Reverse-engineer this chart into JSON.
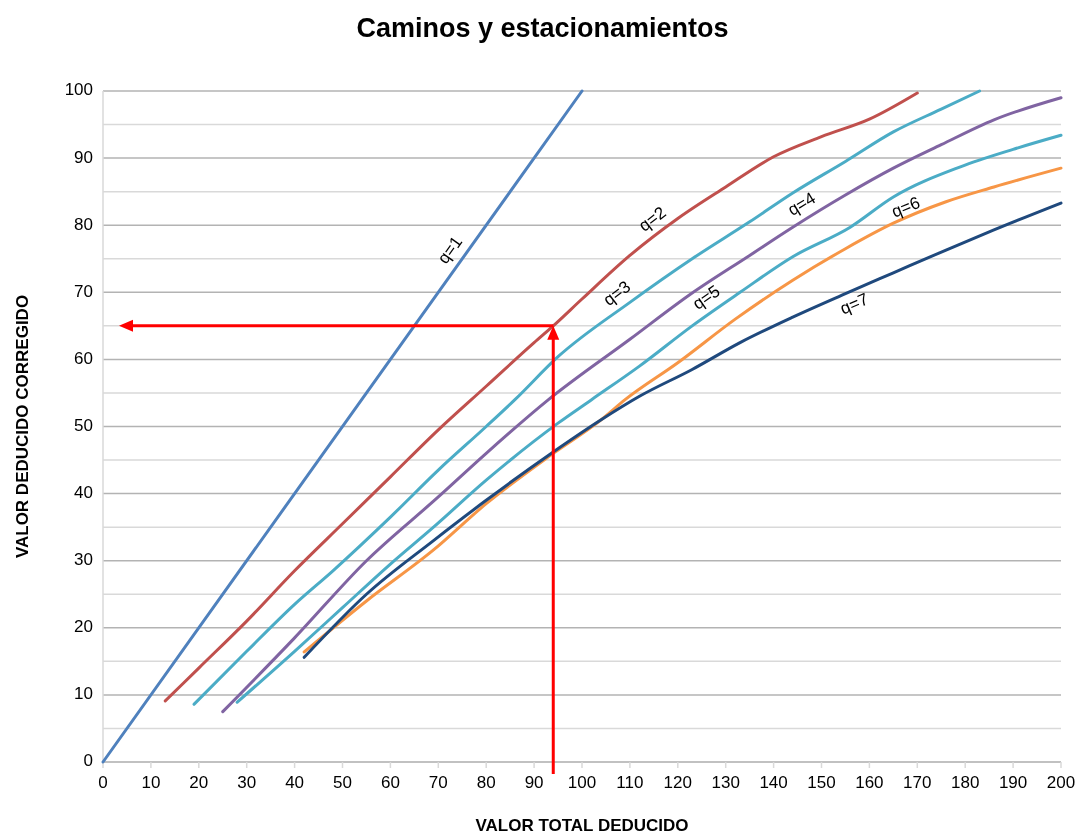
{
  "chart_data": {
    "type": "line",
    "title": "Caminos y estacionamientos",
    "xlabel": "VALOR TOTAL DEDUCIDO",
    "ylabel": "VALOR DEDUCIDO CORREGIDO",
    "xlim": [
      0,
      200
    ],
    "xticks": [
      0,
      10,
      20,
      30,
      40,
      50,
      60,
      70,
      80,
      90,
      100,
      110,
      120,
      130,
      140,
      150,
      160,
      170,
      180,
      190,
      200
    ],
    "ylim": [
      0,
      100
    ],
    "yticks": [
      0,
      {
        "value": 5,
        "label": null
      },
      10,
      {
        "value": 15,
        "label": null
      },
      20,
      {
        "value": 25,
        "label": null
      },
      30,
      {
        "value": 35,
        "label": null
      },
      40,
      {
        "value": 45,
        "label": null
      },
      50,
      {
        "value": 55,
        "label": null
      },
      60,
      {
        "value": 65,
        "label": null
      },
      70,
      {
        "value": 75,
        "label": null
      },
      80,
      {
        "value": 85,
        "label": null
      },
      90,
      {
        "value": 95,
        "label": null
      },
      100
    ],
    "grid": "y",
    "marker": "none",
    "line_style": "solid",
    "series": [
      {
        "name": "q=1",
        "color": "#4f81bd",
        "x": [
          0,
          100
        ],
        "values": [
          0,
          100
        ]
      },
      {
        "name": "q=2",
        "color": "#c0504d",
        "x": [
          13,
          20,
          30,
          40,
          50,
          60,
          70,
          80,
          90,
          94,
          100,
          110,
          120,
          130,
          140,
          150,
          160,
          170
        ],
        "values": [
          9.1,
          14,
          21,
          28.5,
          35.5,
          42.5,
          49.5,
          56,
          62.5,
          65,
          69,
          75.5,
          81,
          85.7,
          90.2,
          93.2,
          95.8,
          99.7
        ]
      },
      {
        "name": "q=3",
        "color": "#4bacc6",
        "x": [
          19,
          30,
          40,
          48,
          60,
          70,
          80,
          86,
          95,
          110,
          123,
          135,
          144,
          155,
          165,
          175,
          183
        ],
        "values": [
          8.6,
          16.5,
          23.5,
          28.5,
          36.5,
          43.5,
          50,
          54,
          60.4,
          68.5,
          75,
          80.5,
          84.8,
          89.5,
          93.9,
          97.3,
          100
        ]
      },
      {
        "name": "q=4",
        "color": "#8064a2",
        "x": [
          25,
          40,
          55,
          70,
          80,
          93,
          110,
          123,
          135,
          144,
          155,
          165,
          175,
          186,
          200
        ],
        "values": [
          7.5,
          18.5,
          30,
          39.5,
          46,
          54,
          63,
          69.9,
          75.5,
          79.7,
          84.5,
          88.5,
          92,
          95.7,
          99
        ]
      },
      {
        "name": "q=5",
        "color": "#4bacc6",
        "x": [
          28,
          40,
          50,
          60,
          69,
          80,
          95,
          102,
          112,
          123,
          133,
          144,
          156,
          165,
          179,
          190,
          200
        ],
        "values": [
          8.9,
          16.5,
          23,
          29.5,
          35,
          42,
          50.5,
          54,
          59,
          65,
          70,
          75.3,
          79.7,
          84.2,
          88.7,
          91.3,
          93.4
        ]
      },
      {
        "name": "q=6",
        "color": "#f79646",
        "x": [
          42,
          55,
          69,
          80,
          94,
          104,
          109,
          120,
          132,
          144,
          155,
          165,
          176,
          186,
          200
        ],
        "values": [
          16.4,
          24,
          31.6,
          38.5,
          46,
          51,
          54,
          59.5,
          66,
          71.8,
          76.5,
          80.3,
          83.5,
          85.7,
          88.5
        ]
      },
      {
        "name": "q=7",
        "color": "#1f497d",
        "x": [
          42,
          55,
          69,
          80,
          94,
          104,
          112,
          123,
          133,
          144,
          155,
          165,
          176,
          186,
          200
        ],
        "values": [
          15.6,
          25,
          33,
          39,
          46.2,
          51,
          54.5,
          58.5,
          62.5,
          66.3,
          69.8,
          72.9,
          76.3,
          79.3,
          83.3
        ]
      }
    ],
    "ref_lines": [
      {
        "axis": "x",
        "value": 94,
        "color": "#ff0000"
      },
      {
        "axis": "y",
        "value": 65,
        "color": "#ff0000"
      }
    ]
  }
}
